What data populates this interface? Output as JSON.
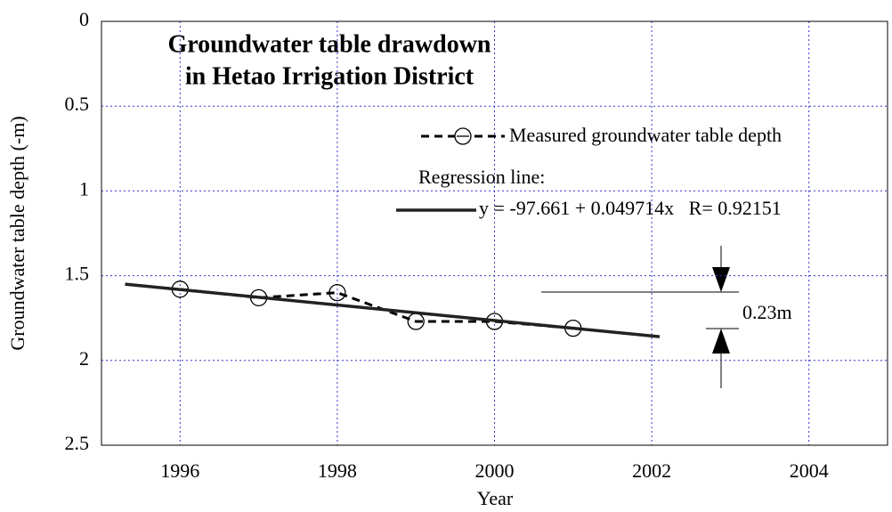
{
  "chart_data": {
    "type": "line",
    "title": [
      "Groundwater table drawdown",
      "in Hetao Irrigation District"
    ],
    "x_label": "Year",
    "y_label": "Groundwater table depth (-m)",
    "xlim": [
      1995,
      2005
    ],
    "xticks": [
      1996,
      1998,
      2000,
      2002,
      2004
    ],
    "ylim": [
      0,
      2.5
    ],
    "yticks": [
      0,
      0.5,
      1,
      1.5,
      2,
      2.5
    ],
    "y_inverted": true,
    "grid": true,
    "series": [
      {
        "name": "Measured groundwater table depth",
        "color": "#000000",
        "dashed": true,
        "markers": true,
        "x": [
          1996,
          1997,
          1998,
          1999,
          2000,
          2001
        ],
        "values": [
          1.58,
          1.63,
          1.6,
          1.77,
          1.77,
          1.81
        ]
      },
      {
        "name": "Regression line:",
        "color": "#222222",
        "dashed": false,
        "markers": false,
        "x": [
          1995.3,
          2002.1
        ],
        "values": [
          1.55,
          1.86
        ]
      }
    ],
    "annotations": [
      "y = -97.661 + 0.049714x   R= 0.92151",
      "0.23m"
    ]
  }
}
